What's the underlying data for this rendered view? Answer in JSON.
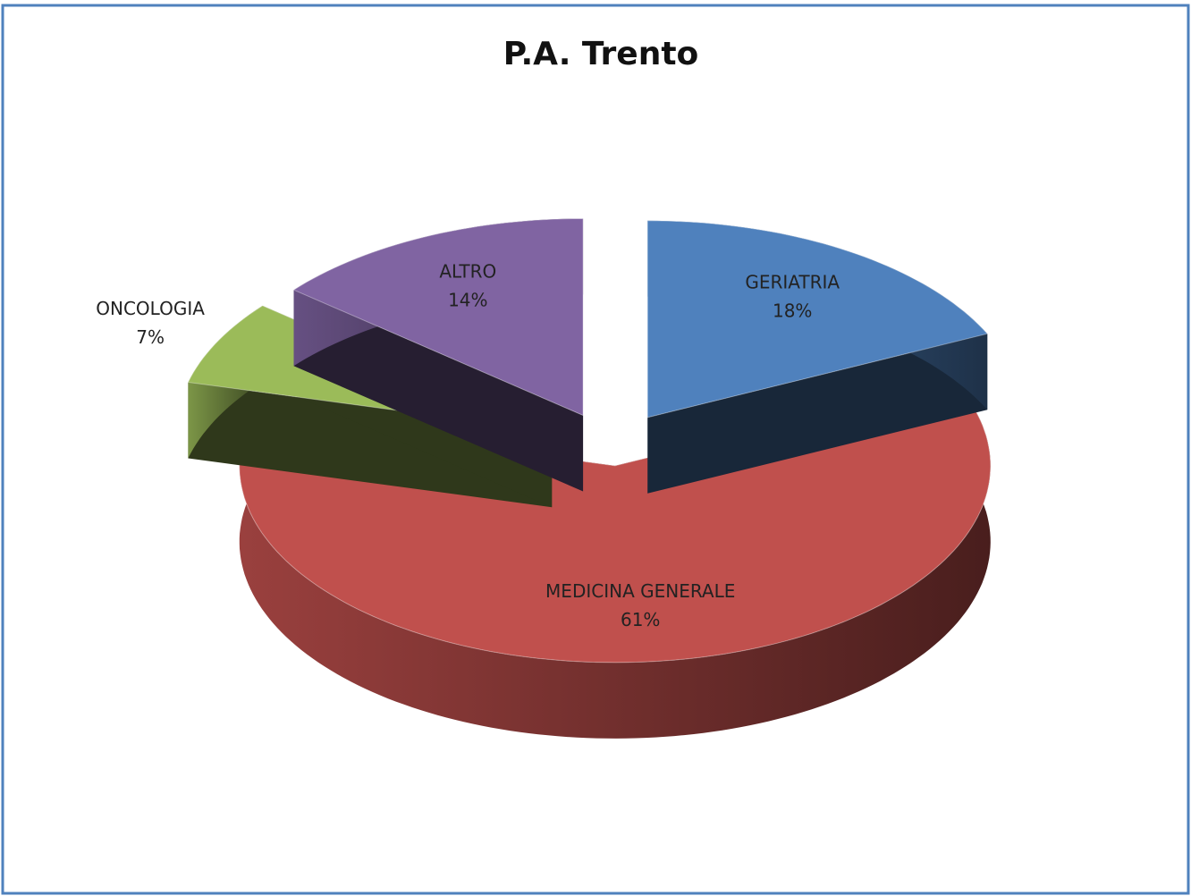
{
  "chart_data": {
    "type": "pie",
    "title": "P.A. Trento",
    "categories": [
      "GERIATRIA",
      "MEDICINA GENERALE",
      "ONCOLOGIA",
      "ALTRO"
    ],
    "values": [
      18,
      61,
      7,
      14
    ],
    "value_labels": [
      "18%",
      "61%",
      "7%",
      "14%"
    ],
    "colors": [
      "#4f81bd",
      "#c0504d",
      "#9bbb59",
      "#8064a2"
    ]
  }
}
